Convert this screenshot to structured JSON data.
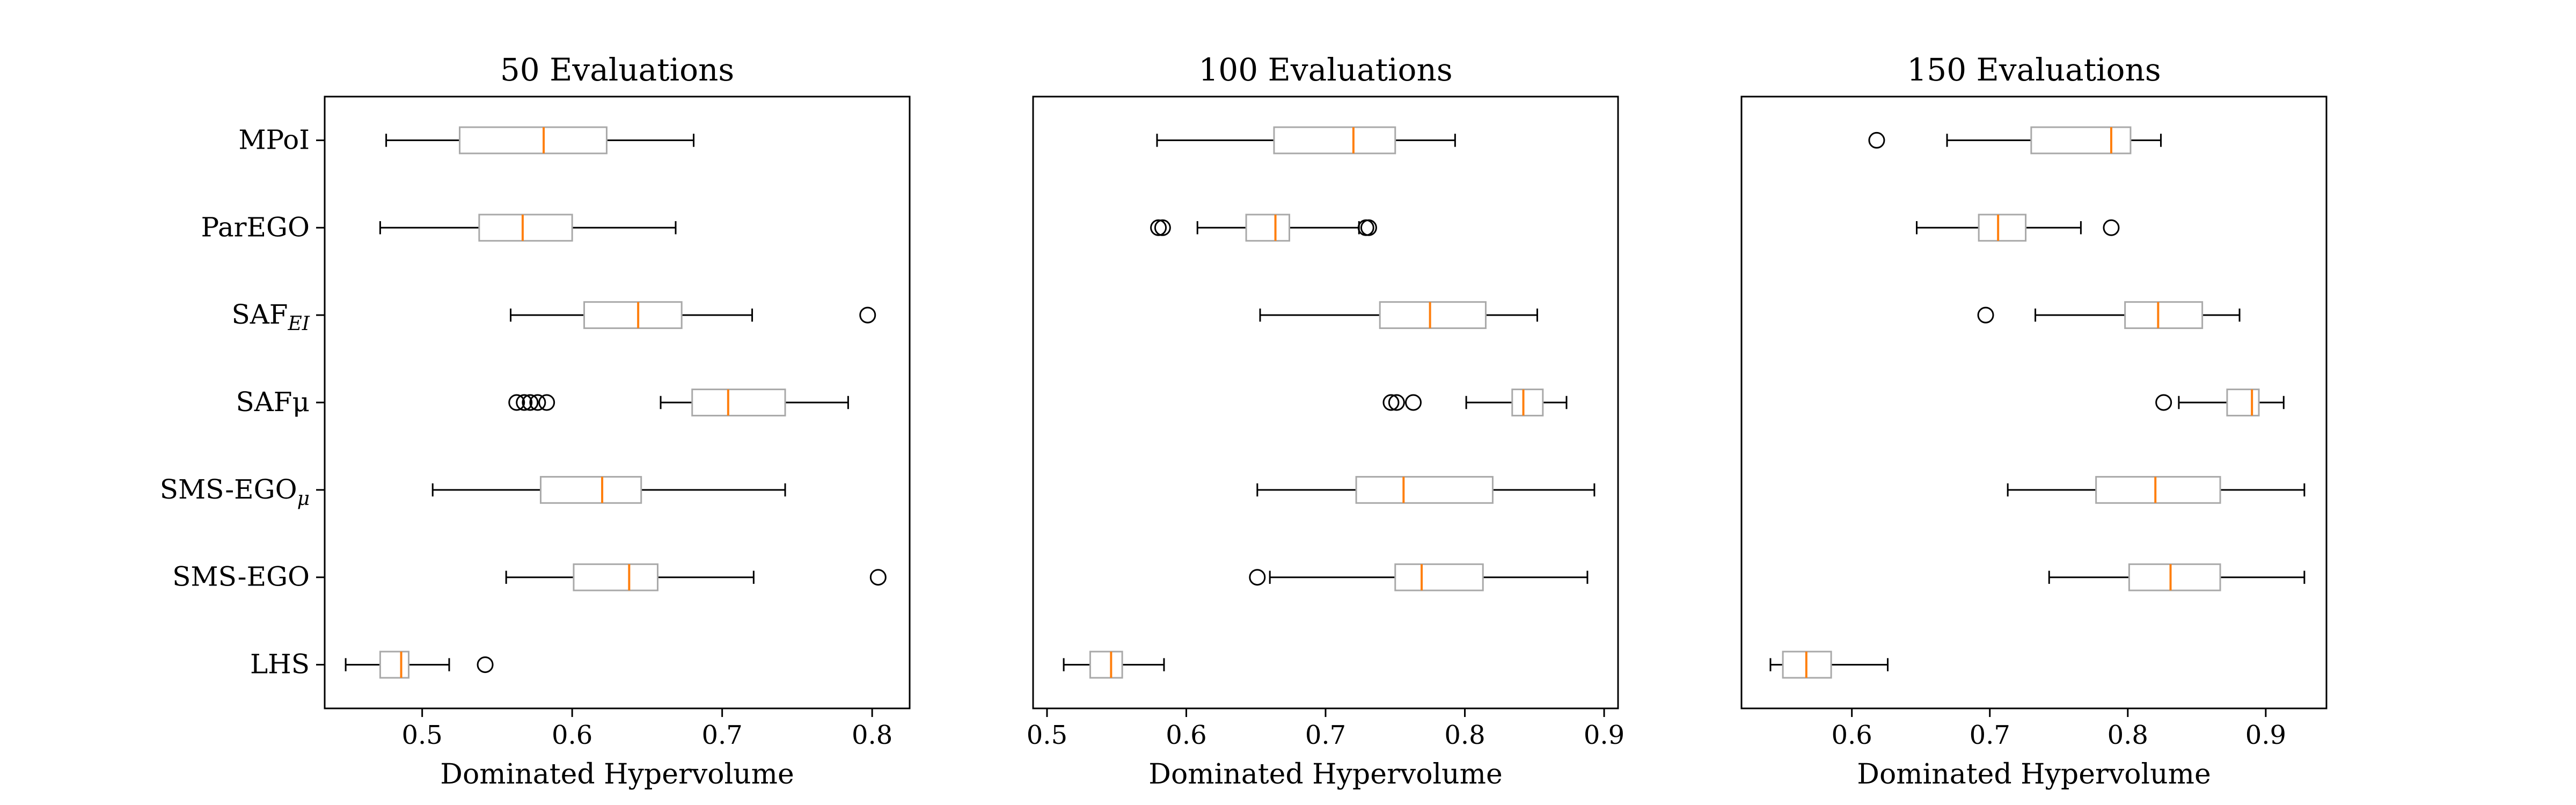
{
  "figure": {
    "categories": [
      "MPoI",
      "ParEGO",
      "SAF_EI",
      "SAFμ",
      "SMS-EGO_μ",
      "SMS-EGO",
      "LHS"
    ],
    "category_labels": [
      {
        "main": "MPoI",
        "sub": ""
      },
      {
        "main": "ParEGO",
        "sub": ""
      },
      {
        "main": "SAF",
        "sub": "EI"
      },
      {
        "main": "SAFμ",
        "sub": ""
      },
      {
        "main": "SMS-EGO",
        "sub": "μ"
      },
      {
        "main": "SMS-EGO",
        "sub": ""
      },
      {
        "main": "LHS",
        "sub": ""
      }
    ],
    "colors": {
      "box": "#a9a9a9",
      "median": "#ff7f0e",
      "whisker": "#000000",
      "axes": "#000000"
    }
  },
  "chart_data": [
    {
      "type": "boxplot",
      "orientation": "horizontal",
      "title": "50 Evaluations",
      "xlabel": "Dominated Hypervolume",
      "xlim": [
        0.435,
        0.825
      ],
      "xticks": [
        0.5,
        0.6,
        0.7,
        0.8
      ],
      "xtick_labels": [
        "0.5",
        "0.6",
        "0.7",
        "0.8"
      ],
      "show_category_labels": true,
      "series": [
        {
          "category": "MPoI",
          "whislo": 0.476,
          "q1": 0.525,
          "median": 0.581,
          "q3": 0.623,
          "whishi": 0.681,
          "fliers": []
        },
        {
          "category": "ParEGO",
          "whislo": 0.472,
          "q1": 0.538,
          "median": 0.567,
          "q3": 0.6,
          "whishi": 0.669,
          "fliers": []
        },
        {
          "category": "SAF_EI",
          "whislo": 0.559,
          "q1": 0.608,
          "median": 0.644,
          "q3": 0.673,
          "whishi": 0.72,
          "fliers": [
            0.797
          ]
        },
        {
          "category": "SAFμ",
          "whislo": 0.659,
          "q1": 0.68,
          "median": 0.704,
          "q3": 0.742,
          "whishi": 0.784,
          "fliers": [
            0.563,
            0.568,
            0.572,
            0.577,
            0.583
          ]
        },
        {
          "category": "SMS-EGO_μ",
          "whislo": 0.507,
          "q1": 0.579,
          "median": 0.62,
          "q3": 0.646,
          "whishi": 0.742,
          "fliers": []
        },
        {
          "category": "SMS-EGO",
          "whislo": 0.556,
          "q1": 0.601,
          "median": 0.638,
          "q3": 0.657,
          "whishi": 0.721,
          "fliers": [
            0.804
          ]
        },
        {
          "category": "LHS",
          "whislo": 0.449,
          "q1": 0.472,
          "median": 0.486,
          "q3": 0.491,
          "whishi": 0.518,
          "fliers": [
            0.542
          ]
        }
      ]
    },
    {
      "type": "boxplot",
      "orientation": "horizontal",
      "title": "100 Evaluations",
      "xlabel": "Dominated Hypervolume",
      "xlim": [
        0.49,
        0.91
      ],
      "xticks": [
        0.5,
        0.6,
        0.7,
        0.8,
        0.9
      ],
      "xtick_labels": [
        "0.5",
        "0.6",
        "0.7",
        "0.8",
        "0.9"
      ],
      "show_category_labels": false,
      "series": [
        {
          "category": "MPoI",
          "whislo": 0.579,
          "q1": 0.663,
          "median": 0.72,
          "q3": 0.75,
          "whishi": 0.793,
          "fliers": []
        },
        {
          "category": "ParEGO",
          "whislo": 0.608,
          "q1": 0.643,
          "median": 0.664,
          "q3": 0.674,
          "whishi": 0.724,
          "fliers": [
            0.58,
            0.583,
            0.729,
            0.731
          ]
        },
        {
          "category": "SAF_EI",
          "whislo": 0.653,
          "q1": 0.739,
          "median": 0.775,
          "q3": 0.815,
          "whishi": 0.852,
          "fliers": []
        },
        {
          "category": "SAFμ",
          "whislo": 0.801,
          "q1": 0.834,
          "median": 0.842,
          "q3": 0.856,
          "whishi": 0.873,
          "fliers": [
            0.747,
            0.751,
            0.763
          ]
        },
        {
          "category": "SMS-EGO_μ",
          "whislo": 0.651,
          "q1": 0.722,
          "median": 0.756,
          "q3": 0.82,
          "whishi": 0.893,
          "fliers": []
        },
        {
          "category": "SMS-EGO",
          "whislo": 0.66,
          "q1": 0.75,
          "median": 0.769,
          "q3": 0.813,
          "whishi": 0.888,
          "fliers": [
            0.651
          ]
        },
        {
          "category": "LHS",
          "whislo": 0.512,
          "q1": 0.531,
          "median": 0.546,
          "q3": 0.554,
          "whishi": 0.584,
          "fliers": []
        }
      ]
    },
    {
      "type": "boxplot",
      "orientation": "horizontal",
      "title": "150 Evaluations",
      "xlabel": "Dominated Hypervolume",
      "xlim": [
        0.52,
        0.944
      ],
      "xticks": [
        0.6,
        0.7,
        0.8,
        0.9
      ],
      "xtick_labels": [
        "0.6",
        "0.7",
        "0.8",
        "0.9"
      ],
      "show_category_labels": false,
      "series": [
        {
          "category": "MPoI",
          "whislo": 0.669,
          "q1": 0.73,
          "median": 0.788,
          "q3": 0.802,
          "whishi": 0.824,
          "fliers": [
            0.618
          ]
        },
        {
          "category": "ParEGO",
          "whislo": 0.647,
          "q1": 0.692,
          "median": 0.706,
          "q3": 0.726,
          "whishi": 0.766,
          "fliers": [
            0.788
          ]
        },
        {
          "category": "SAF_EI",
          "whislo": 0.733,
          "q1": 0.798,
          "median": 0.822,
          "q3": 0.854,
          "whishi": 0.881,
          "fliers": [
            0.697
          ]
        },
        {
          "category": "SAFμ",
          "whislo": 0.837,
          "q1": 0.872,
          "median": 0.89,
          "q3": 0.895,
          "whishi": 0.913,
          "fliers": [
            0.826
          ]
        },
        {
          "category": "SMS-EGO_μ",
          "whislo": 0.713,
          "q1": 0.777,
          "median": 0.82,
          "q3": 0.867,
          "whishi": 0.928,
          "fliers": []
        },
        {
          "category": "SMS-EGO",
          "whislo": 0.743,
          "q1": 0.801,
          "median": 0.831,
          "q3": 0.867,
          "whishi": 0.928,
          "fliers": []
        },
        {
          "category": "LHS",
          "whislo": 0.541,
          "q1": 0.55,
          "median": 0.567,
          "q3": 0.585,
          "whishi": 0.626,
          "fliers": []
        }
      ]
    }
  ]
}
